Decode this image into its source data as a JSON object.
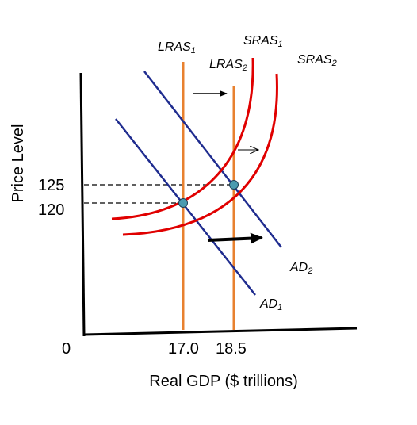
{
  "axes": {
    "ylabel": "Price Level",
    "xlabel": "Real GDP ($ trillions)",
    "origin_label": "0",
    "x_ticks": [
      "17.0",
      "18.5"
    ],
    "y_ticks": [
      "125",
      "120"
    ]
  },
  "curves": {
    "lras1": {
      "base": "LRAS",
      "sub": "1"
    },
    "lras2": {
      "base": "LRAS",
      "sub": "2"
    },
    "sras1": {
      "base": "SRAS",
      "sub": "1"
    },
    "sras2": {
      "base": "SRAS",
      "sub": "2"
    },
    "ad1": {
      "base": "AD",
      "sub": "1"
    },
    "ad2": {
      "base": "AD",
      "sub": "2"
    }
  },
  "colors": {
    "lras": "#E8812F",
    "sras": "#E00000",
    "ad": "#1F2C8F",
    "equilibrium_point": "#4A9BB0",
    "axis": "#000000"
  },
  "shifts": {
    "lras": "right",
    "sras": "right",
    "ad": "right"
  }
}
